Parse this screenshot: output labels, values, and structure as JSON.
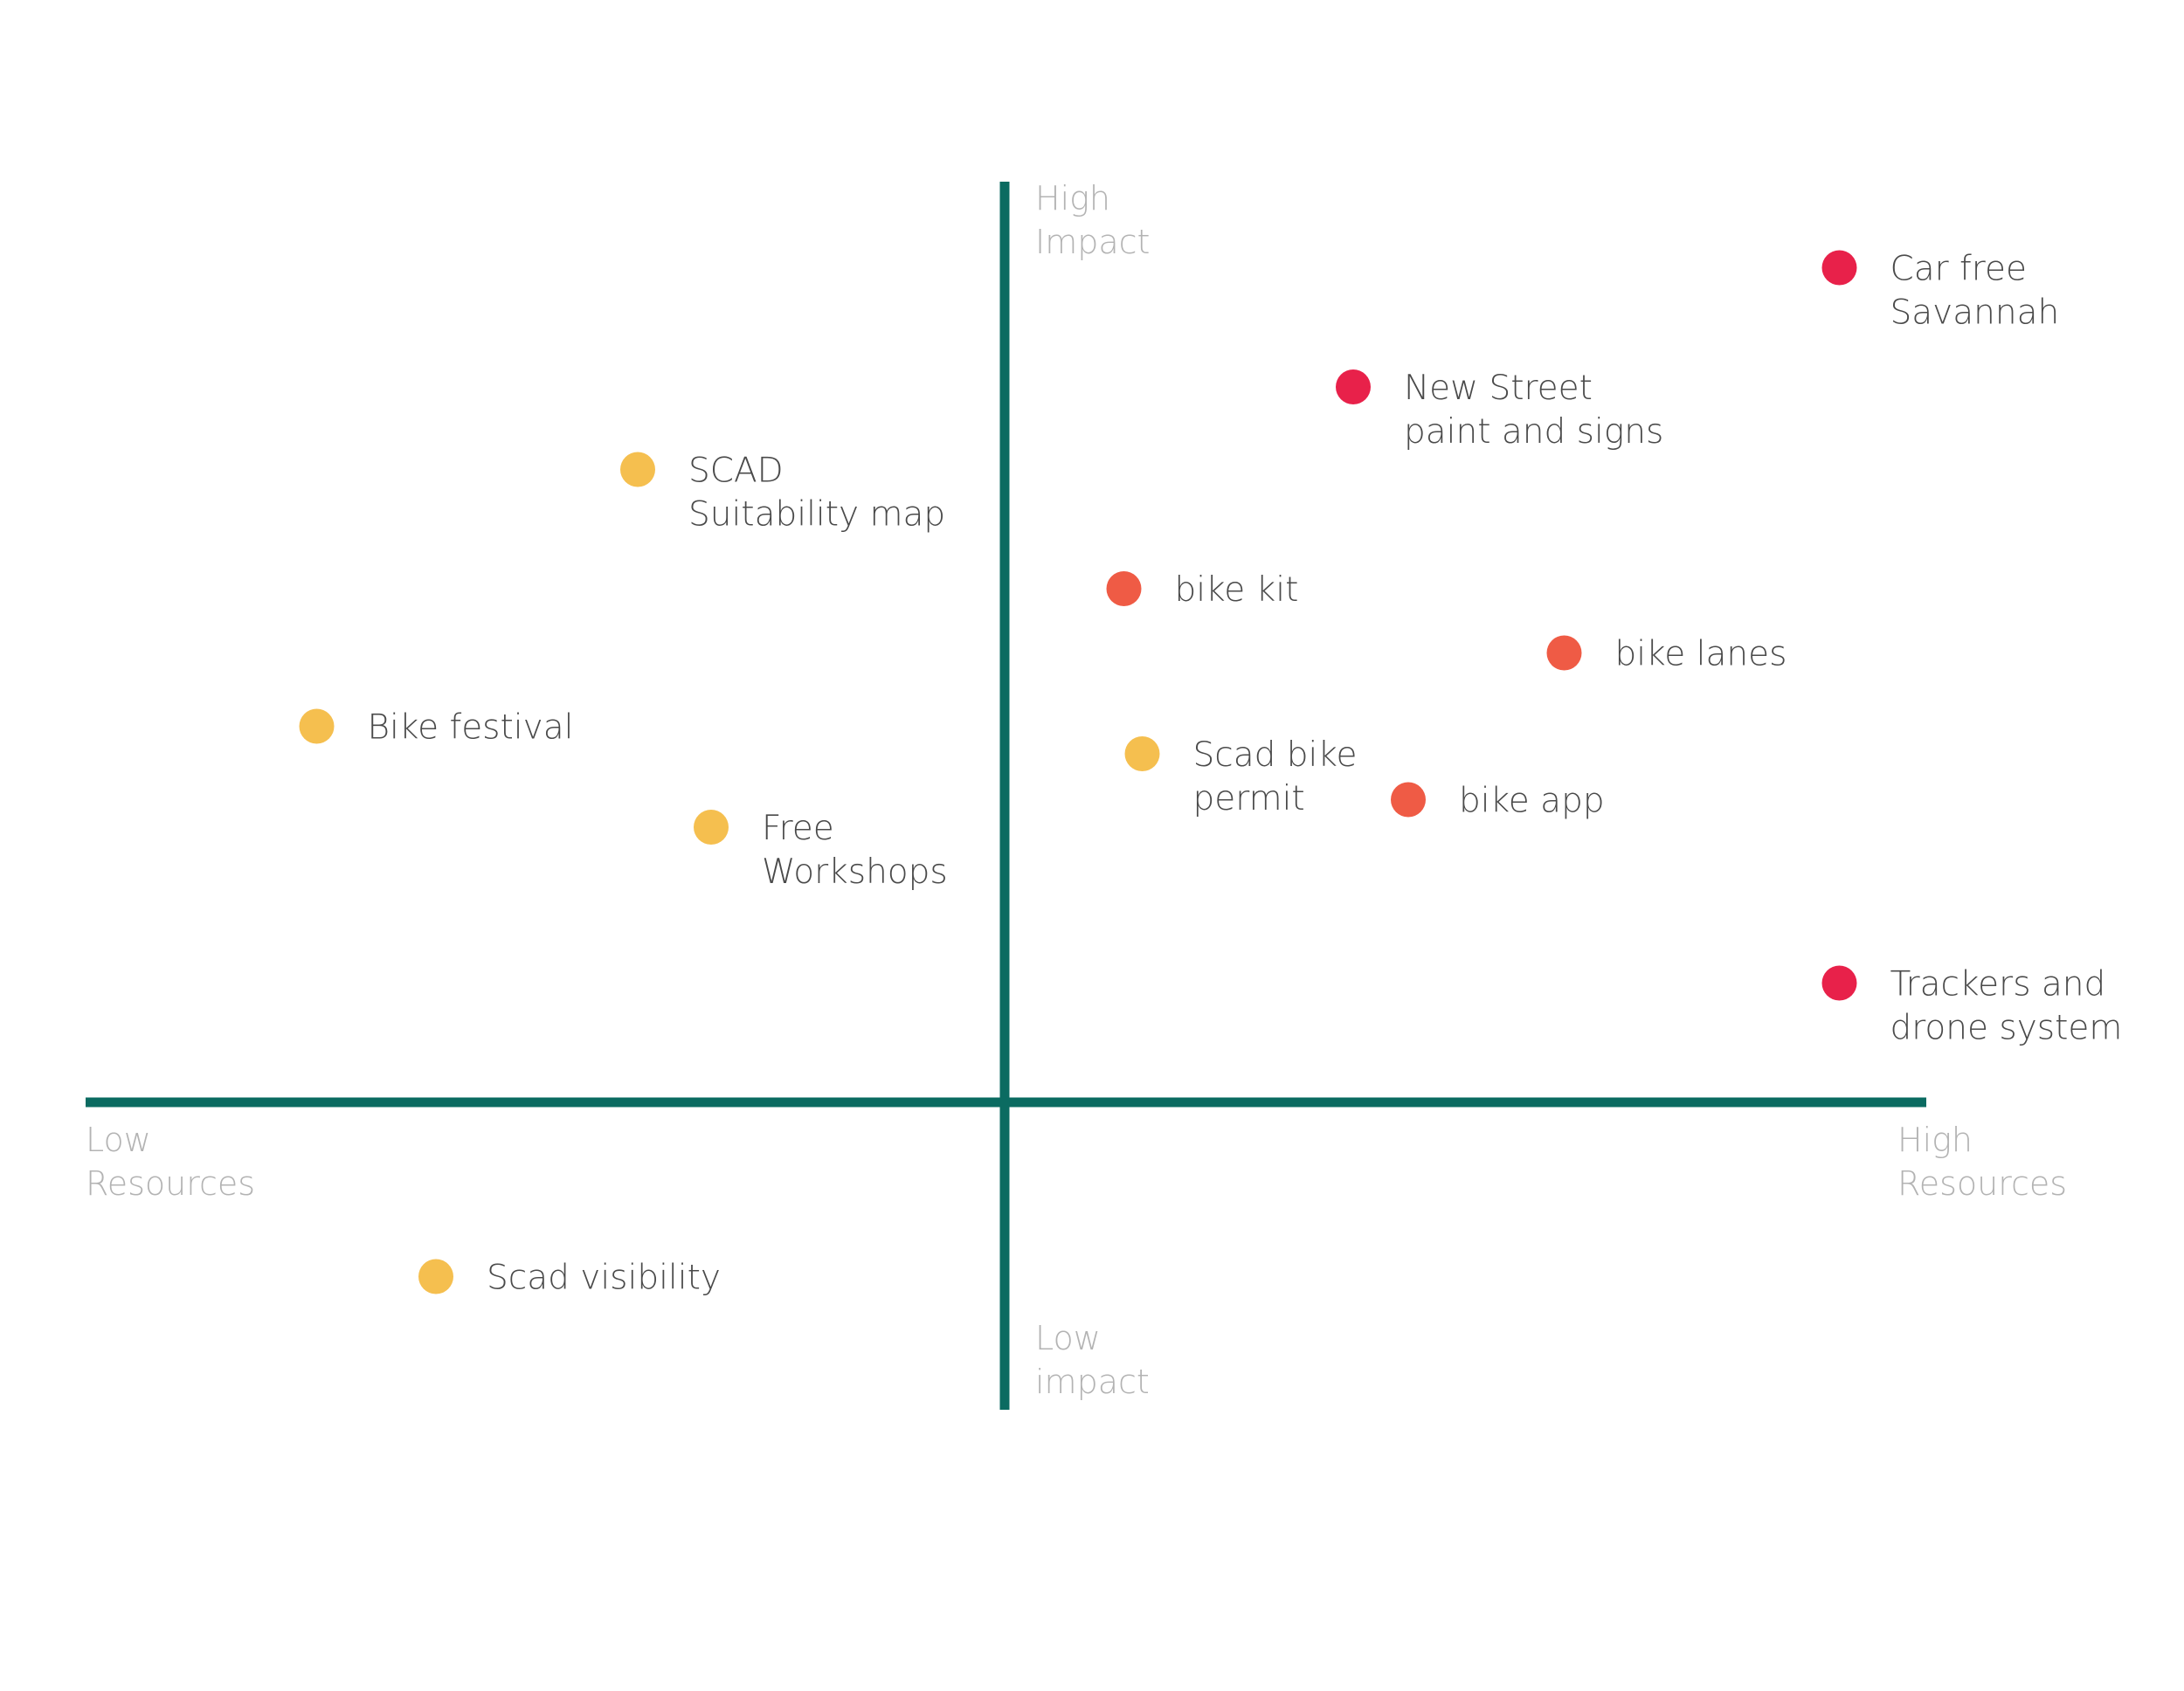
{
  "chart_data": {
    "type": "scatter",
    "title": "",
    "xlabel": "",
    "ylabel": "",
    "xlim": [
      -1,
      1
    ],
    "ylim": [
      -1,
      1
    ],
    "grid": false,
    "legend": "none",
    "colors": {
      "axis": "#0b6b61",
      "axis_label": "#b3b3b3",
      "point_label": "#4a4a4a",
      "low": "#f5bf4f",
      "medium": "#ef5b45",
      "high": "#e8214a"
    },
    "axis_labels": {
      "x_min": [
        "Low",
        "Resources"
      ],
      "x_max": [
        "High",
        "Resources"
      ],
      "y_max": [
        "High",
        "Impact"
      ],
      "y_min": [
        "Low",
        "impact"
      ]
    },
    "points": [
      {
        "label": [
          "Car free",
          "Savannah"
        ],
        "x": 0.91,
        "y": 0.91,
        "color": "#e8214a"
      },
      {
        "label": [
          "New Street",
          "paint and signs"
        ],
        "x": 0.38,
        "y": 0.78,
        "color": "#e8214a"
      },
      {
        "label": [
          "SCAD",
          "Suitability map"
        ],
        "x": -0.4,
        "y": 0.69,
        "color": "#f5bf4f"
      },
      {
        "label": [
          "bike kit"
        ],
        "x": 0.13,
        "y": 0.56,
        "color": "#ef5b45"
      },
      {
        "label": [
          "bike lanes"
        ],
        "x": 0.61,
        "y": 0.49,
        "color": "#ef5b45"
      },
      {
        "label": [
          "Bike festival"
        ],
        "x": -0.75,
        "y": 0.41,
        "color": "#f5bf4f"
      },
      {
        "label": [
          "Scad bike",
          "permit"
        ],
        "x": 0.15,
        "y": 0.38,
        "color": "#f5bf4f"
      },
      {
        "label": [
          "bike app"
        ],
        "x": 0.44,
        "y": 0.33,
        "color": "#ef5b45"
      },
      {
        "label": [
          "Free",
          "Workshops"
        ],
        "x": -0.32,
        "y": 0.3,
        "color": "#f5bf4f"
      },
      {
        "label": [
          "Trackers and",
          "drone system"
        ],
        "x": 0.91,
        "y": 0.13,
        "color": "#e8214a"
      },
      {
        "label": [
          "Scad visibility"
        ],
        "x": -0.62,
        "y": -0.19,
        "color": "#f5bf4f"
      }
    ]
  }
}
